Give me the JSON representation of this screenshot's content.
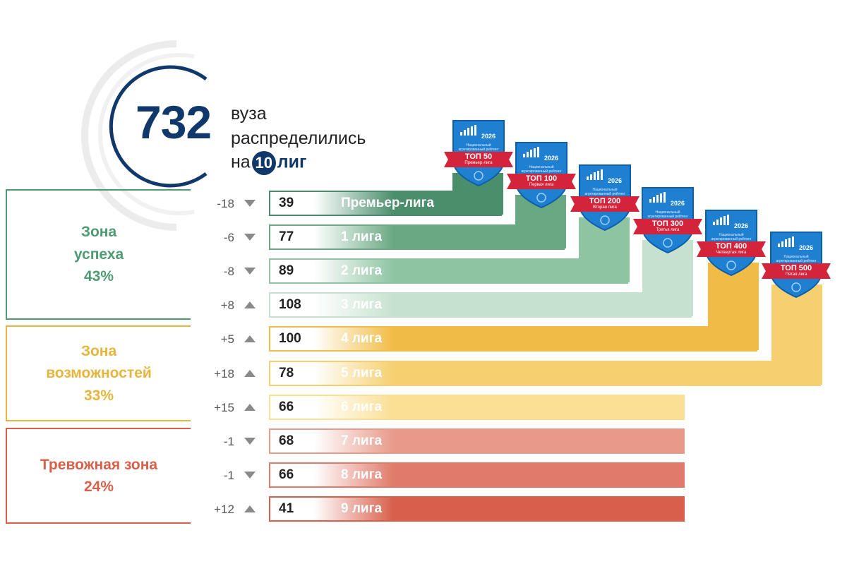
{
  "header": {
    "total": "732",
    "line1": "вуза",
    "line2": "распределились",
    "line3_prefix": "на",
    "league_count": "10",
    "line3_suffix": "лиг"
  },
  "zones": [
    {
      "name_line1": "Зона",
      "name_line2": "успеха",
      "percent": "43%",
      "color": "#4e9a73"
    },
    {
      "name_line1": "Зона",
      "name_line2": "возможностей",
      "percent": "33%",
      "color": "#e7b53b"
    },
    {
      "name_line1": "Тревожная зона",
      "name_line2": "",
      "percent": "24%",
      "color": "#d8604a"
    }
  ],
  "badges": [
    {
      "top": "ТОП 50",
      "league": "Премьер-лига",
      "year": "2026",
      "caption": "Национальный агрегированный рейтинг"
    },
    {
      "top": "ТОП 100",
      "league": "Первая лига",
      "year": "2026",
      "caption": "Национальный агрегированный рейтинг"
    },
    {
      "top": "ТОП 200",
      "league": "Вторая лига",
      "year": "2026",
      "caption": "Национальный агрегированный рейтинг"
    },
    {
      "top": "ТОП 300",
      "league": "Третья лига",
      "year": "2026",
      "caption": "Национальный агрегированный рейтинг"
    },
    {
      "top": "ТОП 400",
      "league": "Четвертая лига",
      "year": "2026",
      "caption": "Национальный агрегированный рейтинг"
    },
    {
      "top": "ТОП 500",
      "league": "Пятая лига",
      "year": "2026",
      "caption": "Национальный агрегированный рейтинг"
    }
  ],
  "chart_data": {
    "type": "bar",
    "orientation": "horizontal",
    "categories": [
      "Премьер-лига",
      "1 лига",
      "2 лига",
      "3 лига",
      "4 лига",
      "5 лига",
      "6 лига",
      "7 лига",
      "8 лига",
      "9 лига"
    ],
    "values": [
      39,
      77,
      89,
      108,
      100,
      78,
      66,
      68,
      66,
      41
    ],
    "change_labels": [
      "-18",
      "-6",
      "-8",
      "+8",
      "+5",
      "+18",
      "+15",
      "-1",
      "-1",
      "+12"
    ],
    "change_direction": [
      "down",
      "down",
      "down",
      "up",
      "up",
      "up",
      "up",
      "down",
      "down",
      "up"
    ],
    "colors": [
      "#4b8e6c",
      "#6aa883",
      "#8ec4a2",
      "#c6e2cf",
      "#f1bc45",
      "#f6d070",
      "#fadf94",
      "#e89a8a",
      "#e07a6a",
      "#d85f4b"
    ]
  }
}
